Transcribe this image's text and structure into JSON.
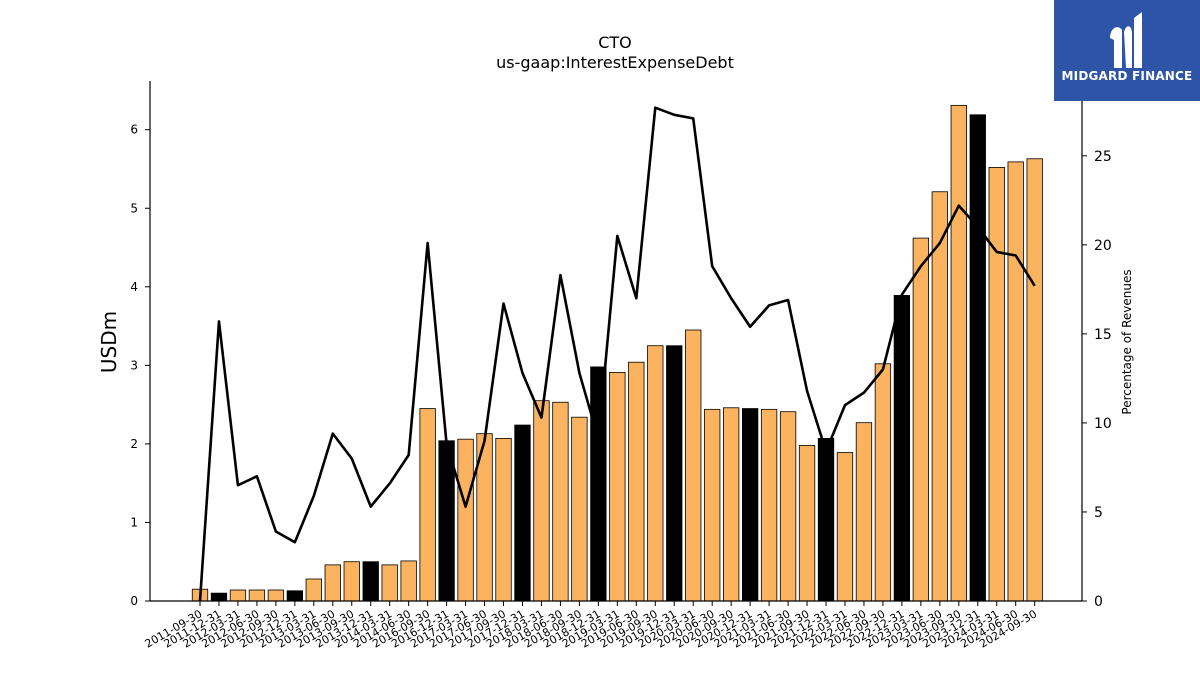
{
  "chart_data": {
    "type": "bar",
    "title": "CTO",
    "subtitle": "us-gaap:InterestExpenseDebt",
    "ylabel": "USDm",
    "y2label": "Percentage of Revenues",
    "ylim": [
      0,
      6.62
    ],
    "y2lim": [
      0,
      29.2
    ],
    "yticks": [
      0,
      1,
      2,
      3,
      4,
      5,
      6
    ],
    "y2ticks": [
      0,
      5,
      10,
      15,
      20,
      25
    ],
    "categories": [
      "2011-09-30",
      "2011-12-31",
      "2012-03-31",
      "2012-06-30",
      "2012-09-30",
      "2012-12-31",
      "2013-03-31",
      "2013-06-30",
      "2013-09-30",
      "2013-12-31",
      "2014-03-31",
      "2014-06-30",
      "2016-09-30",
      "2016-12-31",
      "2017-03-31",
      "2017-06-30",
      "2017-09-30",
      "2017-12-31",
      "2018-03-31",
      "2018-06-30",
      "2018-09-30",
      "2018-12-31",
      "2019-03-31",
      "2019-06-30",
      "2019-09-30",
      "2019-12-31",
      "2020-03-31",
      "2020-06-30",
      "2020-09-30",
      "2020-12-31",
      "2021-03-31",
      "2021-06-30",
      "2021-09-30",
      "2021-12-31",
      "2022-03-31",
      "2022-06-30",
      "2022-09-30",
      "2022-12-31",
      "2023-03-31",
      "2023-06-30",
      "2023-09-30",
      "2023-12-31",
      "2024-03-31",
      "2024-06-30",
      "2024-09-30"
    ],
    "series": [
      {
        "kind": "bar",
        "values": [
          0.15,
          0.1,
          0.14,
          0.14,
          0.14,
          0.13,
          0.28,
          0.46,
          0.5,
          0.5,
          0.46,
          0.51,
          2.45,
          2.04,
          2.06,
          2.13,
          2.07,
          2.24,
          2.55,
          2.53,
          2.34,
          2.98,
          2.91,
          3.04,
          3.25,
          3.25,
          3.45,
          2.44,
          2.46,
          2.45,
          2.44,
          2.41,
          1.98,
          2.07,
          1.89,
          2.27,
          3.02,
          3.89,
          4.62,
          5.21,
          6.31,
          6.19,
          5.52,
          5.59,
          5.63
        ],
        "q4_flags": [
          false,
          true,
          false,
          false,
          false,
          true,
          false,
          false,
          false,
          true,
          false,
          false,
          false,
          true,
          false,
          false,
          false,
          true,
          false,
          false,
          false,
          true,
          false,
          false,
          false,
          true,
          false,
          false,
          false,
          true,
          false,
          false,
          false,
          true,
          false,
          false,
          false,
          true,
          false,
          false,
          false,
          true,
          false,
          false,
          false
        ],
        "color": "#fbb360",
        "q4_color": "#000000"
      },
      {
        "kind": "line",
        "axis": "right",
        "values": [
          0.0,
          15.7,
          6.5,
          7.0,
          3.9,
          3.3,
          5.9,
          9.4,
          8.0,
          5.3,
          6.6,
          8.2,
          20.1,
          8.8,
          5.3,
          9.0,
          16.7,
          12.8,
          10.3,
          18.3,
          12.8,
          9.1,
          20.5,
          17.0,
          27.7,
          27.3,
          27.1,
          18.8,
          17.0,
          15.4,
          16.6,
          16.9,
          11.8,
          8.4,
          11.0,
          11.7,
          13.0,
          17.2,
          18.8,
          20.1,
          22.2,
          21.0,
          19.6,
          19.4,
          17.7
        ],
        "color": "#000000"
      }
    ],
    "grid": false,
    "legend": "none"
  },
  "logo": {
    "text": "MIDGARD FINANCE"
  }
}
